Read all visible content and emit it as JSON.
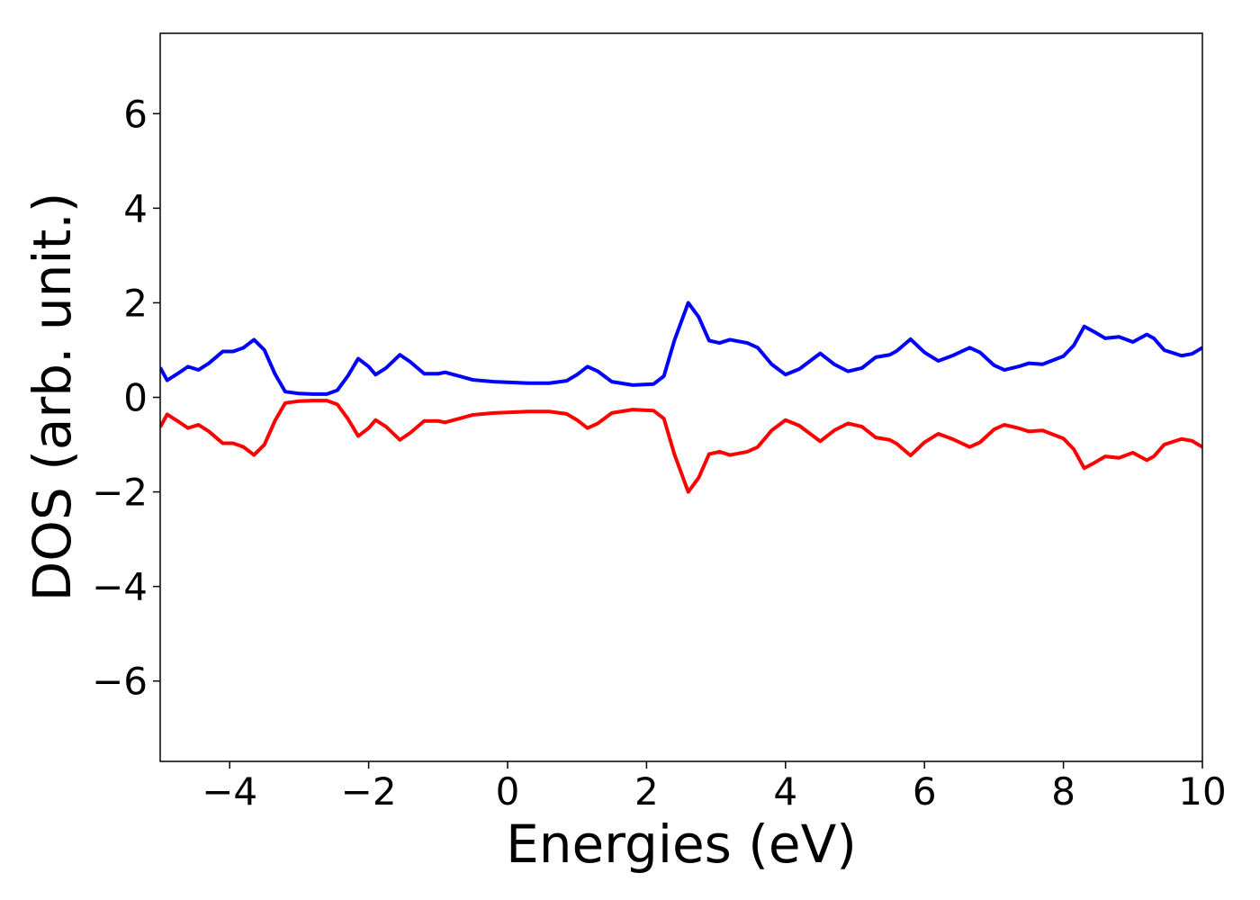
{
  "chart_data": {
    "type": "line",
    "xlabel": "Energies (eV)",
    "ylabel": "DOS (arb. unit.)",
    "xlim": [
      -5,
      10
    ],
    "ylim": [
      -7.7,
      7.7
    ],
    "xticks": [
      {
        "value": -4,
        "label": "−4"
      },
      {
        "value": -2,
        "label": "−2"
      },
      0,
      2,
      4,
      6,
      8,
      10
    ],
    "yticks": [
      {
        "value": -6,
        "label": "−6"
      },
      {
        "value": -4,
        "label": "−4"
      },
      {
        "value": -2,
        "label": "−2"
      },
      0,
      2,
      4,
      6
    ],
    "x": [
      -5,
      -4.9,
      -4.75,
      -4.6,
      -4.45,
      -4.3,
      -4.1,
      -3.95,
      -3.8,
      -3.65,
      -3.5,
      -3.35,
      -3.2,
      -3.0,
      -2.8,
      -2.6,
      -2.45,
      -2.3,
      -2.15,
      -2.0,
      -1.9,
      -1.75,
      -1.55,
      -1.4,
      -1.2,
      -1.0,
      -0.9,
      -0.7,
      -0.5,
      -0.2,
      0,
      0.3,
      0.6,
      0.85,
      1.0,
      1.15,
      1.3,
      1.5,
      1.8,
      2.1,
      2.25,
      2.4,
      2.6,
      2.75,
      2.9,
      3.05,
      3.2,
      3.45,
      3.6,
      3.8,
      4.0,
      4.2,
      4.5,
      4.7,
      4.9,
      5.1,
      5.3,
      5.5,
      5.6,
      5.8,
      6.0,
      6.2,
      6.4,
      6.65,
      6.8,
      7.0,
      7.15,
      7.35,
      7.5,
      7.7,
      8.0,
      8.15,
      8.3,
      8.45,
      8.6,
      8.8,
      9.0,
      9.2,
      9.3,
      9.45,
      9.7,
      9.85,
      10
    ],
    "series": [
      {
        "color": "#0000ff",
        "values": [
          0.63,
          0.36,
          0.5,
          0.65,
          0.58,
          0.72,
          0.97,
          0.97,
          1.05,
          1.22,
          1.0,
          0.5,
          0.12,
          0.08,
          0.07,
          0.07,
          0.15,
          0.45,
          0.82,
          0.65,
          0.48,
          0.62,
          0.9,
          0.75,
          0.5,
          0.5,
          0.53,
          0.45,
          0.37,
          0.33,
          0.32,
          0.3,
          0.3,
          0.35,
          0.48,
          0.65,
          0.55,
          0.33,
          0.26,
          0.28,
          0.45,
          1.2,
          2.0,
          1.7,
          1.2,
          1.15,
          1.22,
          1.15,
          1.05,
          0.7,
          0.48,
          0.6,
          0.93,
          0.7,
          0.55,
          0.62,
          0.85,
          0.9,
          0.98,
          1.23,
          0.95,
          0.77,
          0.88,
          1.05,
          0.95,
          0.68,
          0.58,
          0.65,
          0.72,
          0.7,
          0.87,
          1.1,
          1.5,
          1.38,
          1.25,
          1.28,
          1.17,
          1.33,
          1.25,
          1.0,
          0.88,
          0.92,
          1.05
        ]
      },
      {
        "color": "#ff0000",
        "values": [
          -0.63,
          -0.36,
          -0.5,
          -0.65,
          -0.58,
          -0.72,
          -0.97,
          -0.97,
          -1.05,
          -1.22,
          -1.0,
          -0.5,
          -0.12,
          -0.08,
          -0.07,
          -0.07,
          -0.15,
          -0.45,
          -0.82,
          -0.65,
          -0.48,
          -0.62,
          -0.9,
          -0.75,
          -0.5,
          -0.5,
          -0.53,
          -0.45,
          -0.37,
          -0.33,
          -0.32,
          -0.3,
          -0.3,
          -0.35,
          -0.48,
          -0.65,
          -0.55,
          -0.33,
          -0.26,
          -0.28,
          -0.45,
          -1.2,
          -2.0,
          -1.7,
          -1.2,
          -1.15,
          -1.22,
          -1.15,
          -1.05,
          -0.7,
          -0.48,
          -0.6,
          -0.93,
          -0.7,
          -0.55,
          -0.62,
          -0.85,
          -0.9,
          -0.98,
          -1.23,
          -0.95,
          -0.77,
          -0.88,
          -1.05,
          -0.95,
          -0.68,
          -0.58,
          -0.65,
          -0.72,
          -0.7,
          -0.87,
          -1.1,
          -1.5,
          -1.38,
          -1.25,
          -1.28,
          -1.17,
          -1.33,
          -1.25,
          -1.0,
          -0.88,
          -0.92,
          -1.05
        ]
      }
    ]
  }
}
